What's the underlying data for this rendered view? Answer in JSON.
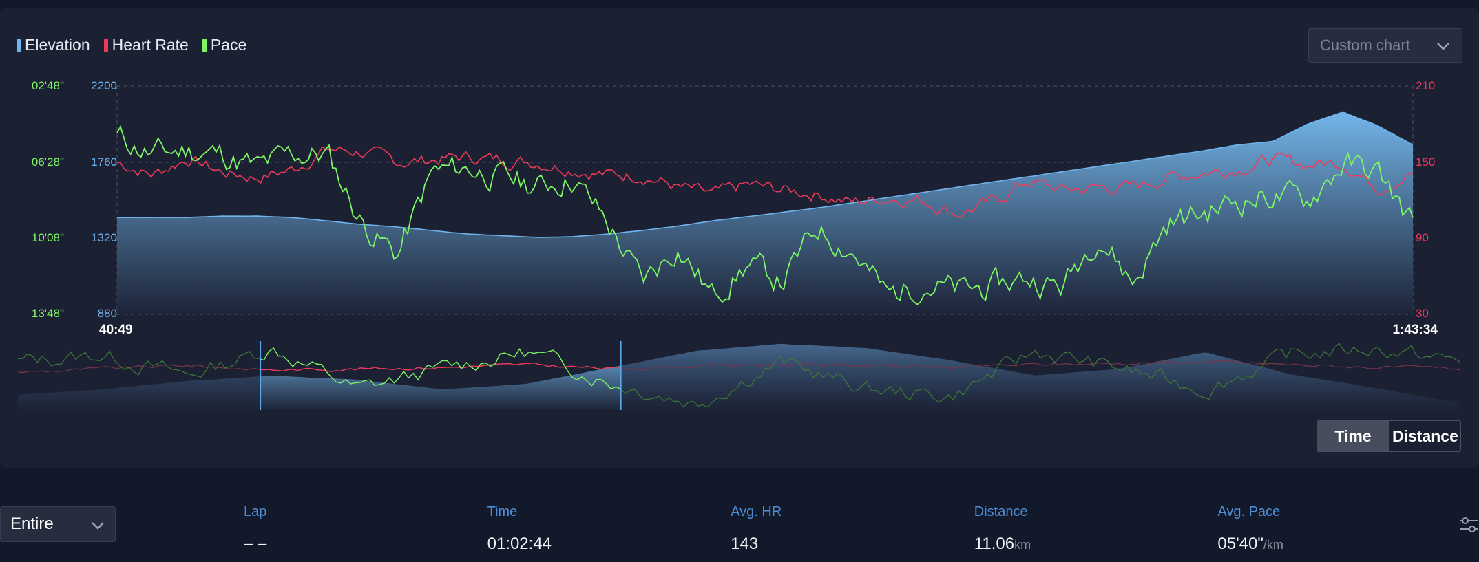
{
  "legend": [
    {
      "label": "Elevation",
      "color": "#6fb4ee"
    },
    {
      "label": "Heart Rate",
      "color": "#ee3a5a"
    },
    {
      "label": "Pace",
      "color": "#7ef565"
    }
  ],
  "custom_chart": {
    "label": "Custom chart",
    "icon": "chevron-down-icon"
  },
  "chart_data": {
    "type": "line",
    "x_start_label": "40:49",
    "x_end_label": "1:43:34",
    "y_axes": {
      "pace_ticks": [
        "02'48\"",
        "06'28\"",
        "10'08\"",
        "13'48\""
      ],
      "elevation_ticks": [
        "2200",
        "1760",
        "1320",
        "880"
      ],
      "heart_rate_ticks": [
        "210",
        "150",
        "90",
        "30"
      ],
      "elevation_range": [
        880,
        2200
      ],
      "heart_rate_range": [
        30,
        210
      ]
    },
    "grid": true,
    "legend_position": "top-left",
    "series": [
      {
        "name": "Elevation",
        "type": "area",
        "color": "#6fb4ee",
        "values": [
          1440,
          1440,
          1440,
          1448,
          1448,
          1440,
          1420,
          1400,
          1385,
          1365,
          1345,
          1335,
          1325,
          1330,
          1345,
          1365,
          1390,
          1420,
          1445,
          1470,
          1495,
          1525,
          1555,
          1585,
          1615,
          1645,
          1675,
          1705,
          1735,
          1765,
          1795,
          1825,
          1860,
          1880,
          1980,
          2050,
          1970,
          1860
        ]
      },
      {
        "name": "Heart Rate",
        "color": "#ee3a5a",
        "values": [
          150,
          140,
          153,
          142,
          138,
          144,
          160,
          158,
          150,
          152,
          154,
          152,
          150,
          145,
          140,
          140,
          130,
          124,
          132,
          128,
          125,
          118,
          122,
          120,
          110,
          118,
          135,
          128,
          130,
          130,
          138,
          142,
          145,
          152,
          148,
          150,
          130,
          142
        ]
      },
      {
        "name": "Pace",
        "color": "#7ef565",
        "values": [
          0.78,
          0.7,
          0.72,
          0.7,
          0.64,
          0.7,
          0.7,
          0.4,
          0.26,
          0.62,
          0.64,
          0.6,
          0.56,
          0.6,
          0.4,
          0.14,
          0.3,
          0.08,
          0.22,
          0.14,
          0.38,
          0.28,
          0.08,
          0.14,
          0.1,
          0.12,
          0.16,
          0.12,
          0.36,
          0.14,
          0.4,
          0.44,
          0.5,
          0.52,
          0.5,
          0.66,
          0.62,
          0.4
        ]
      }
    ]
  },
  "overview": {
    "selection_range": [
      0.15,
      0.4
    ]
  },
  "view_toggle": {
    "time": "Time",
    "distance": "Distance",
    "active": "Time"
  },
  "lap_selector": {
    "label": "Entire",
    "icon": "chevron-down-icon"
  },
  "lap_table": {
    "headers": [
      "Lap",
      "Time",
      "Avg. HR",
      "Distance",
      "Avg. Pace"
    ],
    "row": {
      "lap": "– –",
      "time": "01:02:44",
      "avg_hr": "143",
      "distance": "11.06",
      "distance_unit": "km",
      "avg_pace": "05'40\"",
      "avg_pace_unit": "/km"
    },
    "settings_icon": "sliders-icon"
  }
}
